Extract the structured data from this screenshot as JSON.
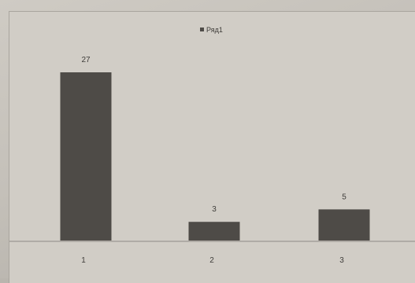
{
  "chart_data": {
    "type": "bar",
    "categories": [
      "1",
      "2",
      "3"
    ],
    "series": [
      {
        "name": "Ряд1",
        "values": [
          27,
          3,
          5
        ],
        "color": "#4e4b47"
      }
    ],
    "data_labels": [
      "27",
      "3",
      "5"
    ],
    "ylim": [
      0,
      27
    ],
    "grid": false,
    "legend_position": "top-center",
    "colors": {
      "background": "#d1cdc6",
      "bar": "#4e4b47",
      "axis": "#8f8b85"
    }
  }
}
